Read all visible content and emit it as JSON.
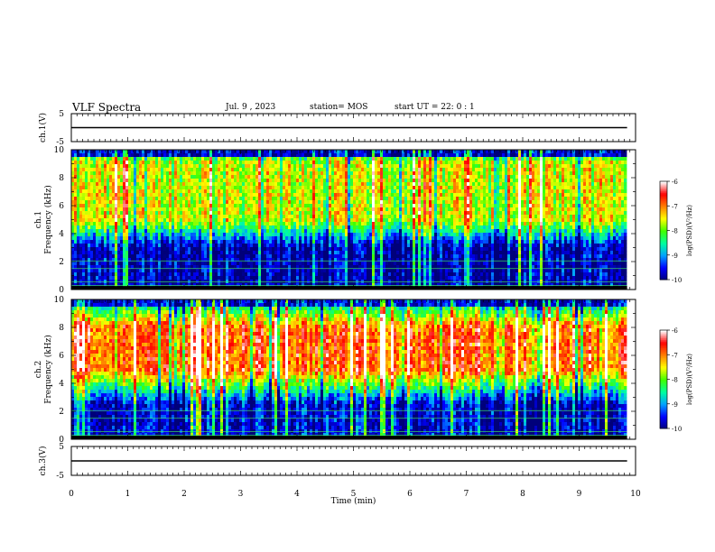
{
  "header": {
    "title": "VLF Spectra",
    "date": "Jul. 9 , 2023",
    "station": "station= MOS",
    "start": "start  UT =  22: 0 : 1"
  },
  "chart_data": [
    {
      "type": "line",
      "panel": "ch1-waveform",
      "ylabel": "ch.1(V)",
      "ylim": [
        -5,
        5
      ],
      "yticks": [
        "5",
        "-5"
      ],
      "xlim": [
        0,
        10
      ],
      "series": [
        {
          "x": [
            0,
            9.85
          ],
          "y": [
            0,
            0
          ]
        }
      ]
    },
    {
      "type": "heatmap",
      "panel": "ch1-spectrogram",
      "ylabel_top": "ch.1",
      "ylabel": "Frequency (kHz)",
      "ylim": [
        0,
        10
      ],
      "yticks": [
        "0",
        "2",
        "4",
        "6",
        "8",
        "10"
      ],
      "xlim": [
        0,
        10
      ],
      "data_end_min": 9.85,
      "intense_band_khz": [
        5,
        9
      ],
      "colorbar": {
        "label": "log(PSD)(V²/Hz)",
        "range": [
          -10,
          -6
        ],
        "ticks": [
          "-6",
          "-7",
          "-8",
          "-9",
          "-10"
        ]
      }
    },
    {
      "type": "heatmap",
      "panel": "ch2-spectrogram",
      "ylabel_top": "ch.2",
      "ylabel": "Frequency (kHz)",
      "ylim": [
        0,
        10
      ],
      "yticks": [
        "0",
        "2",
        "4",
        "6",
        "8",
        "10"
      ],
      "xlim": [
        0,
        10
      ],
      "data_end_min": 9.85,
      "intense_band_khz": [
        5,
        8
      ],
      "colorbar": {
        "label": "log(PSD)(V²/Hz)",
        "range": [
          -10,
          -6
        ],
        "ticks": [
          "-6",
          "-7",
          "-8",
          "-9",
          "-10"
        ]
      }
    },
    {
      "type": "line",
      "panel": "ch3-waveform",
      "ylabel": "ch.3(V)",
      "ylim": [
        -5,
        5
      ],
      "yticks": [
        "5",
        "-5"
      ],
      "xlim": [
        0,
        10
      ],
      "series": [
        {
          "x": [
            0,
            9.85
          ],
          "y": [
            0,
            0
          ]
        }
      ]
    }
  ],
  "x_axis": {
    "label": "Time (min)",
    "ticks": [
      "0",
      "1",
      "2",
      "3",
      "4",
      "5",
      "6",
      "7",
      "8",
      "9",
      "10"
    ]
  },
  "colormap": [
    "#00007a",
    "#0000ff",
    "#00a0ff",
    "#00ffa0",
    "#40ff00",
    "#ffff00",
    "#ff8000",
    "#ff0000",
    "#ffffff"
  ]
}
